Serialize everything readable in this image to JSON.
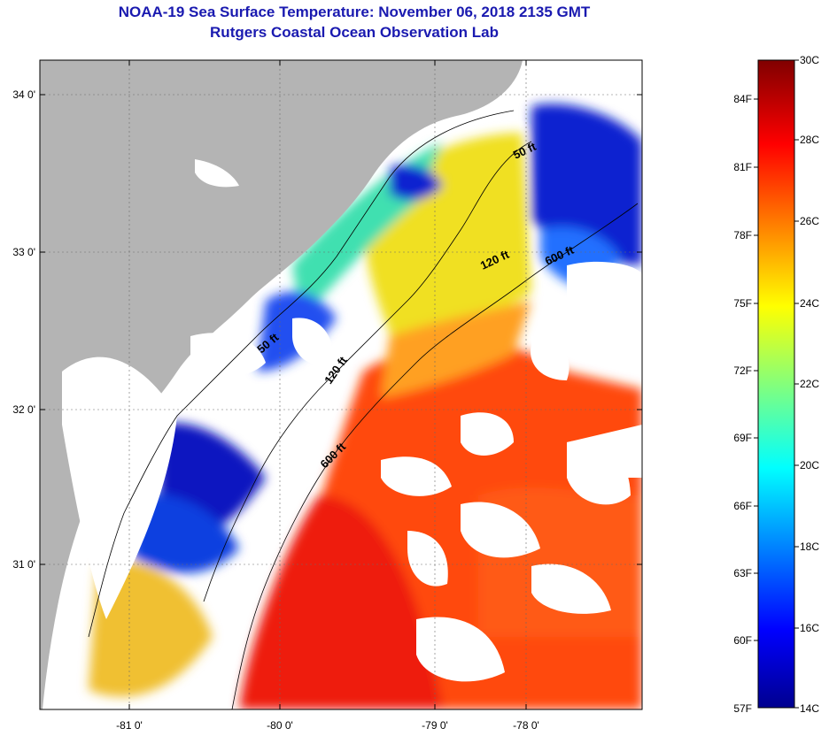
{
  "header": {
    "title": "NOAA-19 Sea Surface Temperature:  November 06, 2018 2135 GMT",
    "subtitle": "Rutgers Coastal Ocean Observation Lab"
  },
  "map": {
    "lat_ticks": [
      "34 0'",
      "33 0'",
      "32 0'",
      "31 0'"
    ],
    "lon_ticks": [
      "-81 0'",
      "-80 0'",
      "-79 0'",
      "-78 0'"
    ],
    "contours": [
      {
        "label": "50 ft"
      },
      {
        "label": "120 ft"
      },
      {
        "label": "600 ft"
      },
      {
        "label": "50 ft"
      },
      {
        "label": "120 ft"
      },
      {
        "label": "600 ft"
      }
    ],
    "colors": {
      "land": "#b4b4b4",
      "cloud": "#ffffff",
      "coast": "#000000"
    }
  },
  "colorbar": {
    "fahrenheit": [
      "84F",
      "81F",
      "78F",
      "75F",
      "72F",
      "69F",
      "66F",
      "63F",
      "60F",
      "57F"
    ],
    "celsius": [
      "30C",
      "28C",
      "26C",
      "24C",
      "22C",
      "20C",
      "18C",
      "16C",
      "14C"
    ],
    "colormap": [
      "#00008f",
      "#0000ff",
      "#00ffff",
      "#ffff00",
      "#ff0000",
      "#800000"
    ]
  }
}
